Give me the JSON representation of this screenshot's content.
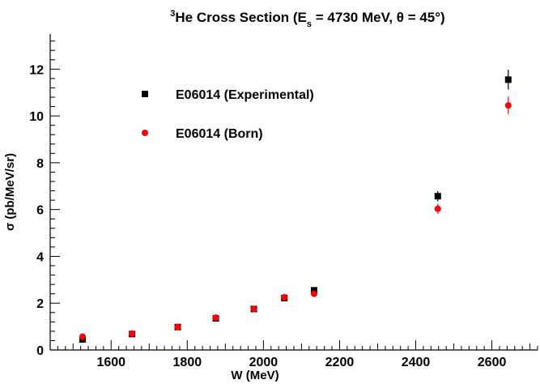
{
  "chart_data": {
    "type": "scatter",
    "title_parts": {
      "sup": "3",
      "pre": "He Cross Section (E",
      "sub": "s",
      "post": " = 4730 MeV, θ = 45°)"
    },
    "xlabel": "W (MeV)",
    "ylabel": "σ (pb/MeV/sr)",
    "xlim": [
      1440,
      2720
    ],
    "ylim": [
      0,
      13.5
    ],
    "xticks": [
      1600,
      1800,
      2000,
      2200,
      2400,
      2600
    ],
    "yticks": [
      0,
      2,
      4,
      6,
      8,
      10,
      12
    ],
    "grid": false,
    "legend_position": "top-left",
    "series": [
      {
        "name": "E06014 (Experimental)",
        "marker": "square",
        "color": "#000000",
        "x": [
          1525,
          1655,
          1775,
          1875,
          1975,
          2055,
          2133,
          2458,
          2643
        ],
        "y": [
          0.45,
          0.68,
          0.98,
          1.35,
          1.75,
          2.22,
          2.55,
          6.57,
          11.55
        ],
        "err": [
          0.05,
          0.05,
          0.06,
          0.07,
          0.08,
          0.1,
          0.12,
          0.22,
          0.42
        ]
      },
      {
        "name": "E06014 (Born)",
        "marker": "circle",
        "color": "#ff0000",
        "x": [
          1525,
          1655,
          1775,
          1875,
          1975,
          2055,
          2133,
          2458,
          2643
        ],
        "y": [
          0.57,
          0.7,
          0.98,
          1.38,
          1.75,
          2.25,
          2.4,
          6.03,
          10.45
        ],
        "err": [
          0.05,
          0.05,
          0.06,
          0.07,
          0.08,
          0.1,
          0.12,
          0.22,
          0.38
        ]
      }
    ]
  }
}
